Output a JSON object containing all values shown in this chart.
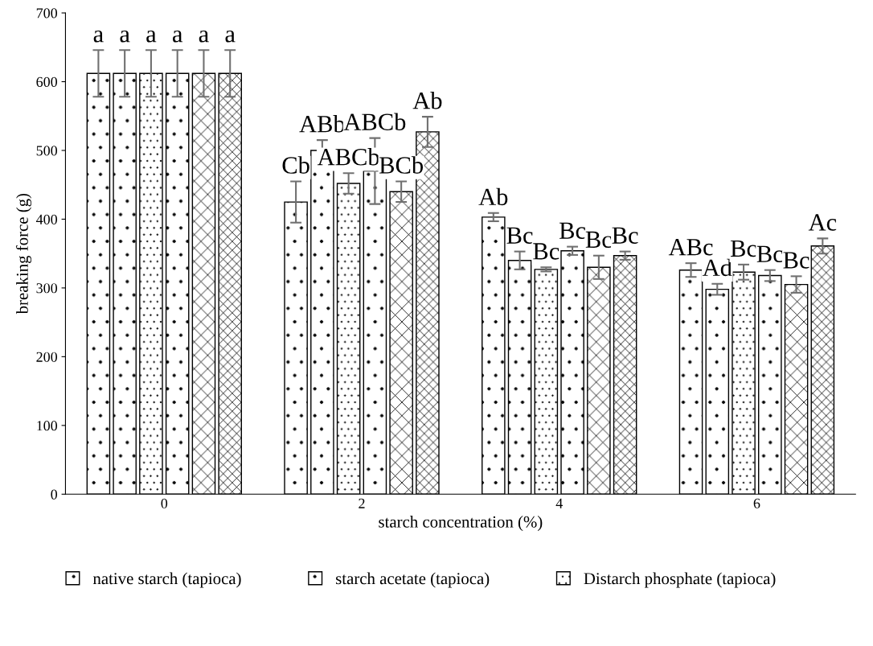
{
  "chart_data": {
    "type": "bar",
    "xlabel": "starch concentration (%)",
    "ylabel": "breaking force (g)",
    "categories": [
      "0",
      "2",
      "4",
      "6"
    ],
    "ylim": [
      0,
      700
    ],
    "yticks": [
      0,
      100,
      200,
      300,
      400,
      500,
      600,
      700
    ],
    "grid": false,
    "legend": "bottom",
    "series": [
      {
        "name": "native starch (tapioca)",
        "color": "#000000",
        "values": [
          612,
          425,
          403,
          326
        ],
        "errors": [
          34,
          30,
          6,
          10
        ],
        "value_labels": [
          "a",
          "Cb",
          "Ab",
          "ABc"
        ]
      },
      {
        "name": "starch acetate (tapioca)",
        "color": "#000000",
        "values": [
          612,
          500,
          340,
          298
        ],
        "errors": [
          34,
          15,
          13,
          8
        ],
        "value_labels": [
          "a",
          "ABb",
          "Bc",
          "Ad"
        ]
      },
      {
        "name": "Distarch phosphate (tapioca)",
        "color": "#000000",
        "values": [
          612,
          452,
          327,
          323
        ],
        "errors": [
          34,
          15,
          3,
          11
        ],
        "value_labels": [
          "a",
          "ABCb",
          "Bc",
          "Bc"
        ]
      },
      {
        "color": "#000000",
        "values": [
          612,
          470,
          354,
          318
        ],
        "errors": [
          34,
          48,
          6,
          8
        ],
        "value_labels": [
          "a",
          "ABCb",
          "Bc",
          "Bc"
        ]
      },
      {
        "color": "#000000",
        "values": [
          612,
          440,
          330,
          305
        ],
        "errors": [
          34,
          15,
          17,
          12
        ],
        "value_labels": [
          "a",
          "BCb",
          "Bc",
          "Bc"
        ]
      },
      {
        "color": "#000000",
        "values": [
          612,
          527,
          347,
          361
        ],
        "errors": [
          34,
          22,
          6,
          11
        ],
        "value_labels": [
          "a",
          "Ab",
          "Bc",
          "Ac"
        ]
      }
    ]
  }
}
